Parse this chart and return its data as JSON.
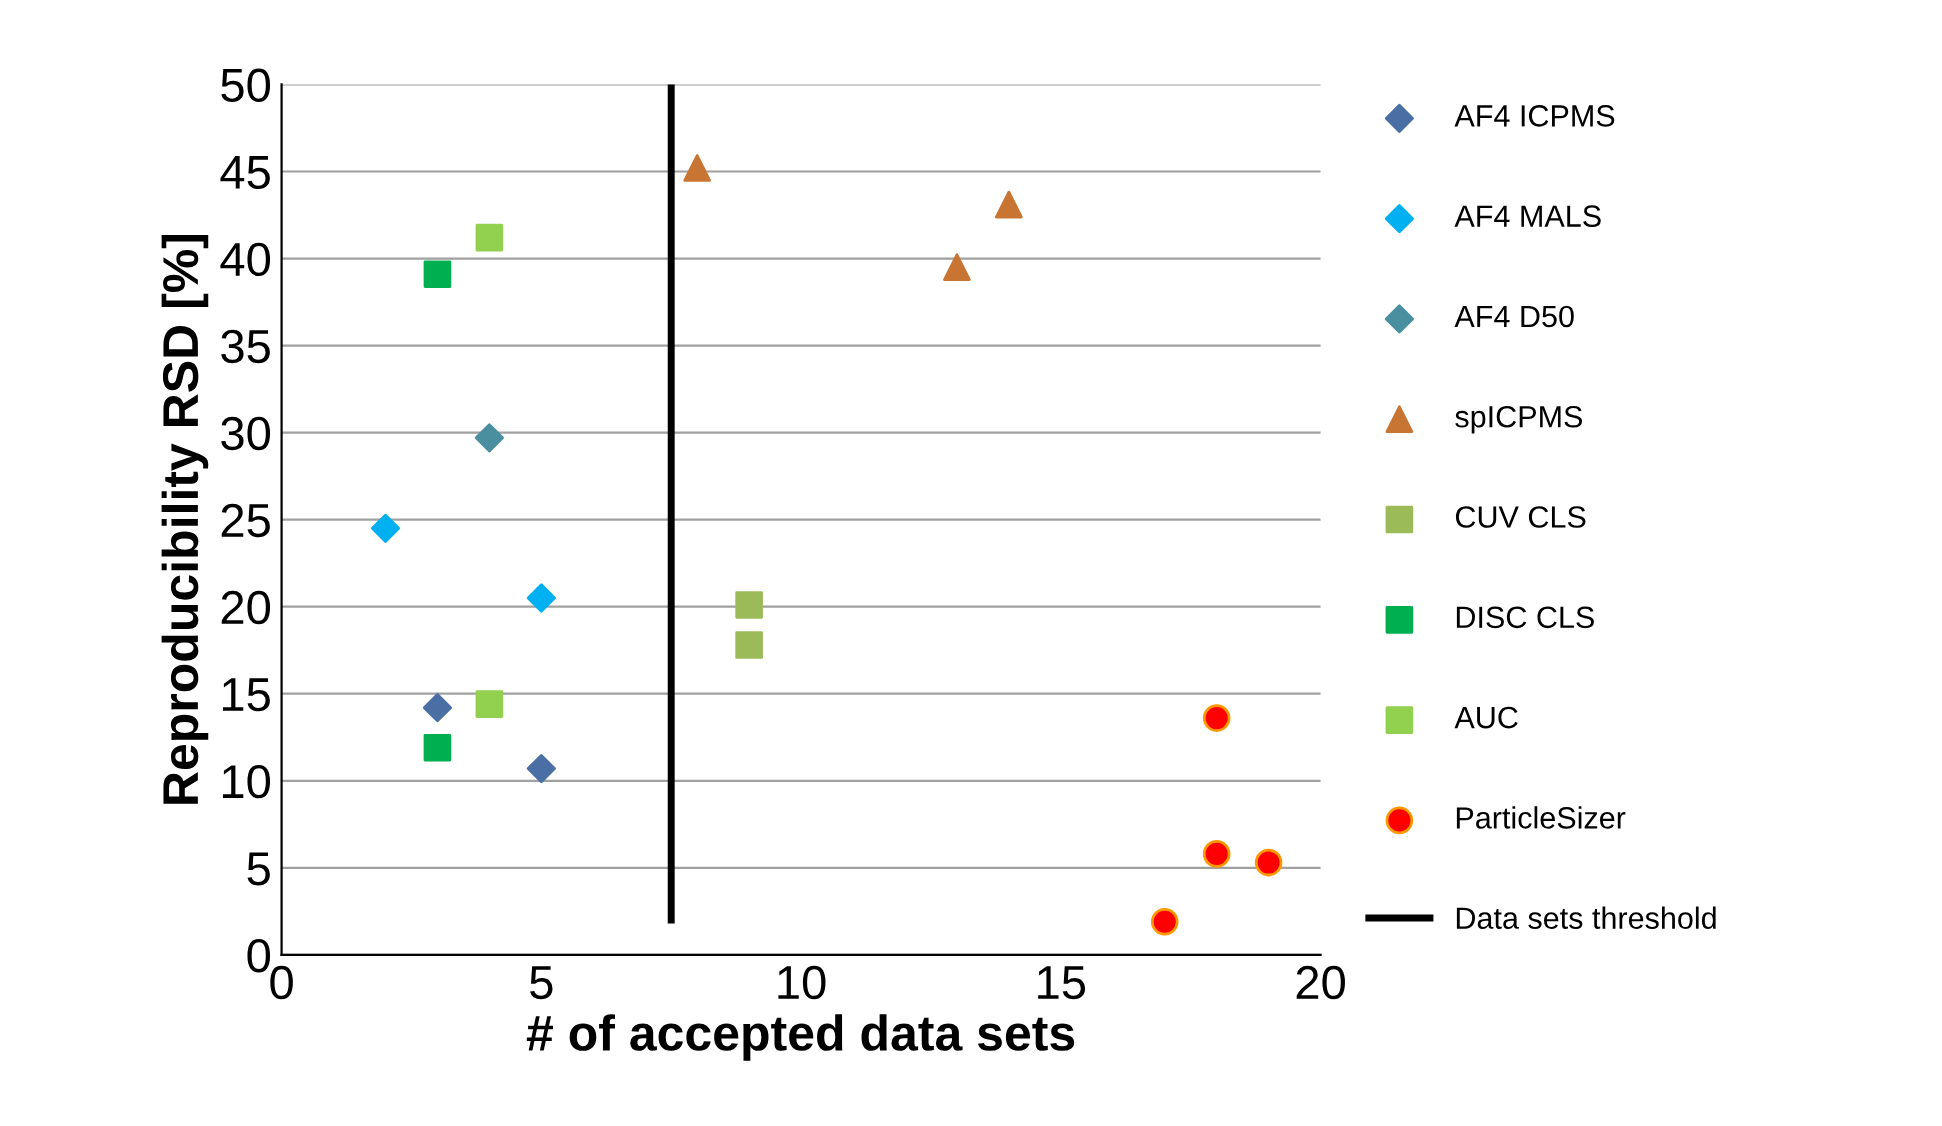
{
  "chart_data": {
    "type": "scatter",
    "xlabel": "# of accepted data sets",
    "ylabel": "Reproducibility RSD [%]",
    "xlim": [
      0,
      20
    ],
    "xticks": [
      0,
      5,
      10,
      15,
      20
    ],
    "ylim": [
      0,
      50
    ],
    "yticks": [
      0,
      5,
      10,
      15,
      20,
      25,
      30,
      35,
      40,
      45,
      50
    ],
    "grid": "y",
    "legend": "right",
    "series": [
      {
        "name": "AF4 ICPMS",
        "color": "#4a6fa5",
        "marker": "diamond",
        "x": [
          3,
          5
        ],
        "values": [
          14.2,
          10.7
        ]
      },
      {
        "name": "AF4 MALS",
        "color": "#00b0f0",
        "marker": "diamond",
        "x": [
          2,
          5
        ],
        "values": [
          24.5,
          20.5
        ]
      },
      {
        "name": "AF4 D50",
        "color": "#4a8fa0",
        "marker": "diamond",
        "x": [
          4
        ],
        "values": [
          29.7
        ]
      },
      {
        "name": "spICPMS",
        "color": "#c87533",
        "marker": "triangle",
        "x": [
          8,
          13,
          14
        ],
        "values": [
          45.2,
          39.5,
          43.1
        ]
      },
      {
        "name": "CUV CLS",
        "color": "#9bbb59",
        "marker": "square",
        "x": [
          9,
          9
        ],
        "values": [
          20.1,
          17.8
        ]
      },
      {
        "name": "DISC CLS",
        "color": "#00b050",
        "marker": "square",
        "x": [
          3,
          3
        ],
        "values": [
          39.1,
          11.9
        ]
      },
      {
        "name": "AUC",
        "color": "#92d050",
        "marker": "square",
        "x": [
          4,
          4
        ],
        "values": [
          41.2,
          14.4
        ]
      },
      {
        "name": "ParticleSizer",
        "color": "#ff0000",
        "marker": "circle",
        "x": [
          18,
          18,
          19,
          17
        ],
        "values": [
          13.6,
          5.8,
          5.3,
          1.9
        ]
      },
      {
        "name": "Data sets threshold",
        "type": "line",
        "color": "#000000",
        "marker": "none",
        "x": [
          7.5,
          7.5
        ],
        "values": [
          2,
          50
        ]
      }
    ]
  }
}
